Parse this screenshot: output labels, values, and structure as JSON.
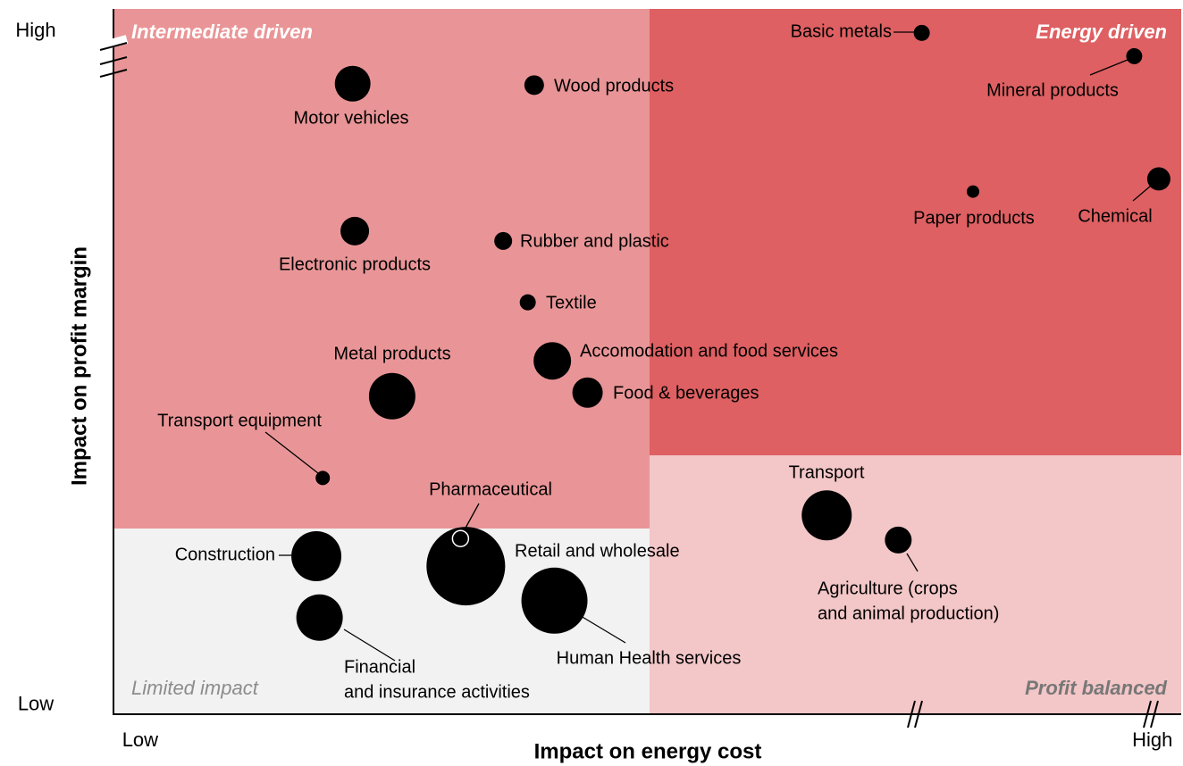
{
  "chart_data": {
    "type": "bubble",
    "x_label": "Impact on energy cost",
    "y_label": "Impact on profit margin",
    "xlim": [
      0,
      100
    ],
    "ylim": [
      0,
      100
    ],
    "xticks": [
      {
        "value": 2.5,
        "label": "Low"
      },
      {
        "value": 97.3,
        "label": "High"
      }
    ],
    "yticks": [
      {
        "value": 1.3,
        "label": "Low"
      },
      {
        "value": 96.8,
        "label": "High"
      }
    ],
    "color": "#000000",
    "annotations": [
      "Intermediate driven",
      "Energy driven",
      "Limited impact",
      "Profit balanced"
    ],
    "points": [
      {
        "label": "Basic metals",
        "x": 75.7,
        "y": 96.6,
        "size": 9
      },
      {
        "label": "Mineral products",
        "x": 95.6,
        "y": 93.3,
        "size": 9
      },
      {
        "label": "Motor vehicles",
        "x": 22.4,
        "y": 89.4,
        "size": 20
      },
      {
        "label": "Wood products",
        "x": 39.4,
        "y": 89.2,
        "size": 11
      },
      {
        "label": "Paper products",
        "x": 80.5,
        "y": 74.1,
        "size": 7
      },
      {
        "label": "Chemical",
        "x": 97.9,
        "y": 75.9,
        "size": 13
      },
      {
        "label": "Electronic products",
        "x": 22.6,
        "y": 68.5,
        "size": 16
      },
      {
        "label": "Rubber and plastic",
        "x": 36.5,
        "y": 67.1,
        "size": 10
      },
      {
        "label": "Textile",
        "x": 38.8,
        "y": 58.4,
        "size": 9
      },
      {
        "label": "Accomodation and food services",
        "x": 41.1,
        "y": 50.1,
        "size": 21
      },
      {
        "label": "Metal products",
        "x": 26.1,
        "y": 45.1,
        "size": 26
      },
      {
        "label": "Food & beverages",
        "x": 44.4,
        "y": 45.6,
        "size": 17
      },
      {
        "label": "Transport equipment",
        "x": 19.6,
        "y": 33.5,
        "size": 8
      },
      {
        "label": "Transport",
        "x": 66.8,
        "y": 28.2,
        "size": 28
      },
      {
        "label": [
          "Agriculture (crops",
          "and animal production)"
        ],
        "x": 73.5,
        "y": 24.7,
        "size": 15
      },
      {
        "label": "Construction",
        "x": 19.0,
        "y": 22.4,
        "size": 28
      },
      {
        "label": "Retail and wholesale",
        "x": 33.0,
        "y": 21.0,
        "size": 44
      },
      {
        "label": "Pharmaceutical",
        "x": 32.5,
        "y": 24.9,
        "size": 9
      },
      {
        "label": [
          "Financial",
          "and insurance activities"
        ],
        "x": 19.3,
        "y": 13.7,
        "size": 26
      },
      {
        "label": "Human Health services",
        "x": 41.3,
        "y": 16.1,
        "size": 37
      }
    ]
  }
}
